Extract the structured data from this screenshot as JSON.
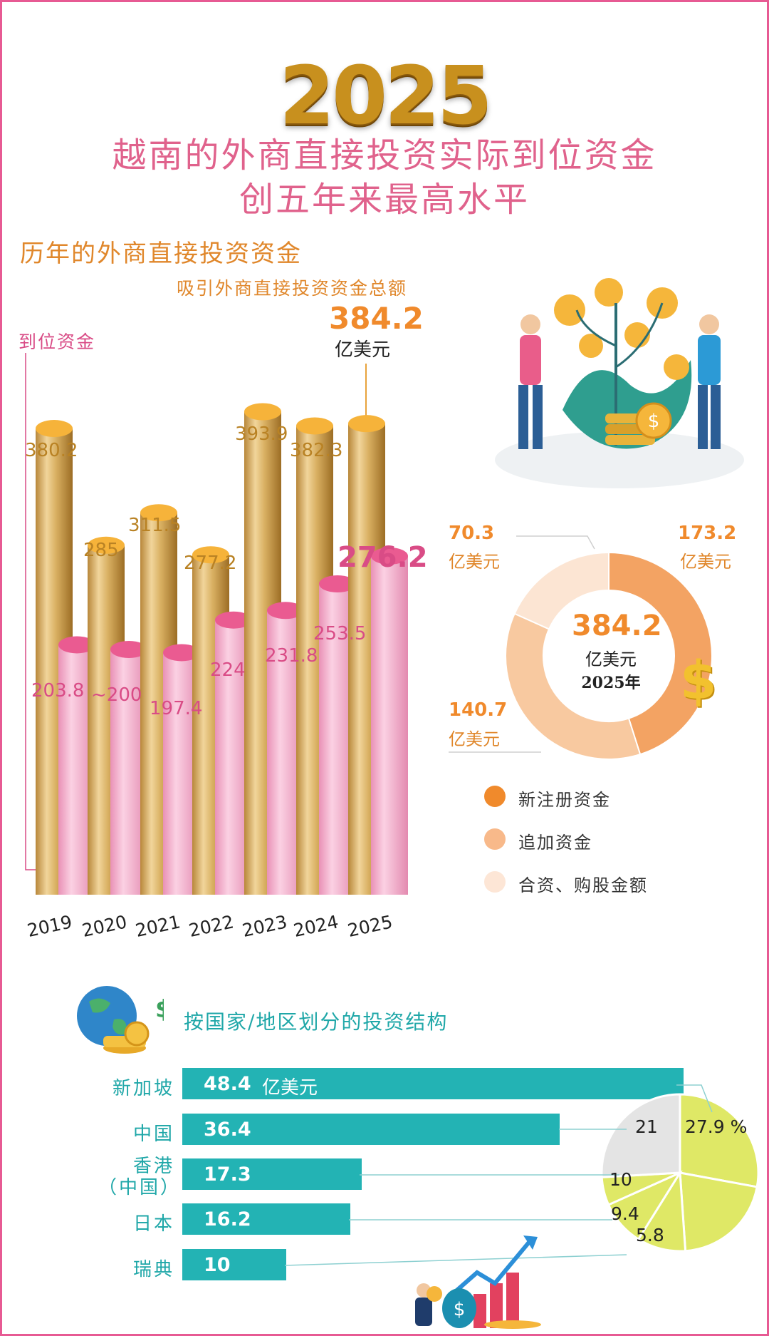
{
  "header": {
    "year": "2025",
    "title_line1": "越南的外商直接投资实际到位资金",
    "title_line2": "创五年来最高水平"
  },
  "section1": {
    "title": "历年的外商直接投资资金",
    "subtitle": "吸引外商直接投资资金总额",
    "disbursed_label": "到位资金",
    "total_value": "384.2",
    "total_unit": "亿美元"
  },
  "chart_data": [
    {
      "type": "bar",
      "categories": [
        "2019",
        "2020",
        "2021",
        "2022",
        "2023",
        "2024",
        "2025"
      ],
      "series": [
        {
          "name": "吸引外商直接投资资金总额",
          "values": [
            380.2,
            285,
            311.5,
            277.2,
            393.9,
            382.3,
            384.2
          ],
          "labels": [
            "380.2",
            "285",
            "311.5",
            "277.2",
            "393.9",
            "382.3",
            ""
          ]
        },
        {
          "name": "到位资金",
          "values": [
            203.8,
            200,
            197.4,
            224,
            231.8,
            253.5,
            276.2
          ],
          "labels": [
            "203.8",
            "~200",
            "197.4",
            "224",
            "231.8",
            "253.5",
            "276.2"
          ]
        }
      ],
      "colors": {
        "total": "#d9b062",
        "disbursed": "#f3a4c6"
      }
    },
    {
      "type": "pie",
      "center_value": "384.2",
      "center_unit": "亿美元",
      "center_year": "2025年",
      "unit": "亿美元",
      "slices": [
        {
          "name": "新注册资金",
          "value": 173.2,
          "label": "173.2",
          "color": "#f3a363"
        },
        {
          "name": "追加资金",
          "value": 140.7,
          "label": "140.7",
          "color": "#f8c9a0"
        },
        {
          "name": "合资、购股金额",
          "value": 70.3,
          "label": "70.3",
          "color": "#fce5d3"
        }
      ]
    },
    {
      "type": "bar",
      "orientation": "horizontal",
      "title": "按国家/地区划分的投资结构",
      "unit": "亿美元",
      "categories": [
        "新加坡",
        "中国",
        "香港",
        "日本",
        "瑞典"
      ],
      "category_suffix": [
        "",
        "",
        "（中国）",
        "",
        ""
      ],
      "values": [
        48.4,
        36.4,
        17.3,
        16.2,
        10
      ],
      "labels": [
        "48.4",
        "36.4",
        "17.3",
        "16.2",
        "10"
      ],
      "color": "#23b3b4"
    },
    {
      "type": "pie",
      "slices": [
        {
          "label": "27.9 %",
          "value": 27.9,
          "color": "#dfe866"
        },
        {
          "label": "21",
          "value": 21,
          "color": "#dfe866"
        },
        {
          "label": "10",
          "value": 10,
          "color": "#dfe866"
        },
        {
          "label": "9.4",
          "value": 9.4,
          "color": "#dfe866"
        },
        {
          "label": "5.8",
          "value": 5.8,
          "color": "#dfe866"
        },
        {
          "label": "",
          "value": 25.9,
          "color": "#e4e4e4"
        }
      ]
    }
  ]
}
